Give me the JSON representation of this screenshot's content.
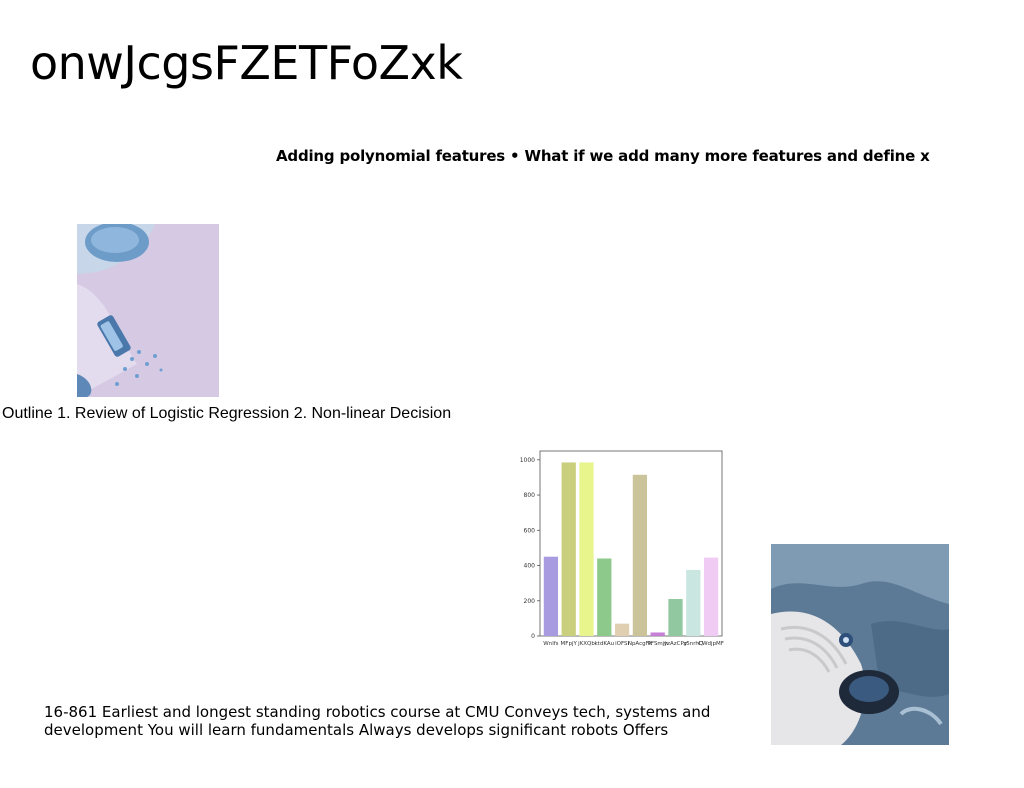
{
  "slide": {
    "title": "onwJcgsFZETFoZxk",
    "subtitle": "Adding polynomial features • What if we add many more features and define x",
    "outline": "Outline 1. Review of Logistic Regression 2. Non-linear Decision",
    "body": "16-861 Earliest and longest standing robotics course at CMU Conveys tech, systems and development You will learn fundamentals Always develops significant robots Offers"
  },
  "chart_data": {
    "type": "bar",
    "categories": [
      "Wnlfs",
      "MFpjY",
      "jKXQb",
      "ktdKAu",
      "iOFSi",
      "NpAcgFk",
      "PFSmjh",
      "yzAzCPy",
      "z5nrhQ",
      "CWdjpMF"
    ],
    "values": [
      450,
      985,
      985,
      440,
      70,
      915,
      20,
      210,
      375,
      445
    ],
    "colors": [
      "#a99be0",
      "#c9cf7c",
      "#e8f48c",
      "#8cc98a",
      "#e0cfb0",
      "#cbc49a",
      "#c77fd6",
      "#92c8a0",
      "#c9e6e0",
      "#f0ccf5"
    ],
    "ylim": [
      0,
      1050
    ],
    "yticks": [
      0,
      200,
      400,
      600,
      800,
      1000
    ],
    "title": "",
    "xlabel": "",
    "ylabel": ""
  }
}
